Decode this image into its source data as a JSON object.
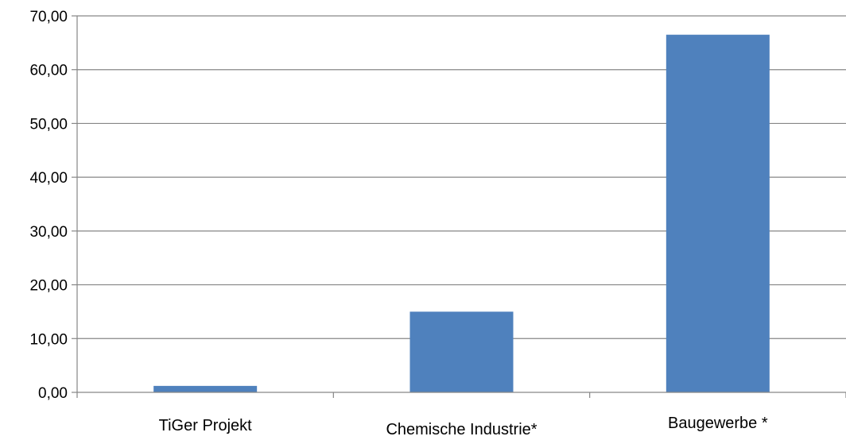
{
  "chart_data": {
    "type": "bar",
    "categories": [
      "TiGer Projekt",
      "Chemische Industrie*",
      "Baugewerbe  *"
    ],
    "values": [
      1.2,
      15.0,
      66.5
    ],
    "ylim": [
      0,
      70
    ],
    "yticks": [
      "0,00",
      "10,00",
      "20,00",
      "30,00",
      "40,00",
      "50,00",
      "60,00",
      "70,00"
    ],
    "title": "",
    "xlabel": "",
    "ylabel": "",
    "grid": true,
    "legend": "none",
    "colors": {
      "bar": "#4f81bd",
      "grid": "#868686",
      "axis": "#868686"
    }
  }
}
